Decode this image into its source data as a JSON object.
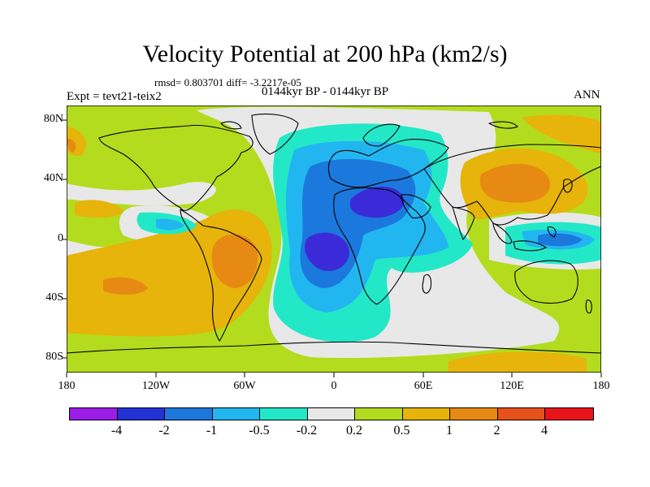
{
  "title": "Velocity Potential at 200 hPa (km2/s)",
  "stats": "rmsd= 0.803701 diff= -3.2217e-05",
  "experiment": "Expt = tevt21-teix2",
  "period": "0144kyr BP - 0144kyr BP",
  "season": "ANN",
  "lat_labels": [
    "80N",
    "40N",
    "0",
    "40S",
    "80S"
  ],
  "lon_labels": [
    "180",
    "120W",
    "60W",
    "0",
    "60E",
    "120E",
    "180"
  ],
  "colorbar": {
    "colors": [
      "#9b1ee8",
      "#2233d6",
      "#1b78dc",
      "#22b6f0",
      "#22e8c8",
      "#e8e8e8",
      "#b4dc1e",
      "#e6b40a",
      "#e68a14",
      "#e8501c",
      "#e8141a"
    ],
    "labels": [
      "-4",
      "-2",
      "-1",
      "-0.5",
      "-0.2",
      "0.2",
      "0.5",
      "1",
      "2",
      "4"
    ]
  },
  "map_colors": {
    "land": "#000000",
    "neutral": "#e8e8e8",
    "weak_pos": "#b4dc1e",
    "mod_pos": "#e6b40a",
    "strong_pos": "#e68a14",
    "weak_neg": "#22e8c8",
    "mod_neg": "#22b6f0",
    "neg": "#1b78dc",
    "strong_neg": "#2233d6",
    "ext_neg": "#3a2ad8"
  }
}
